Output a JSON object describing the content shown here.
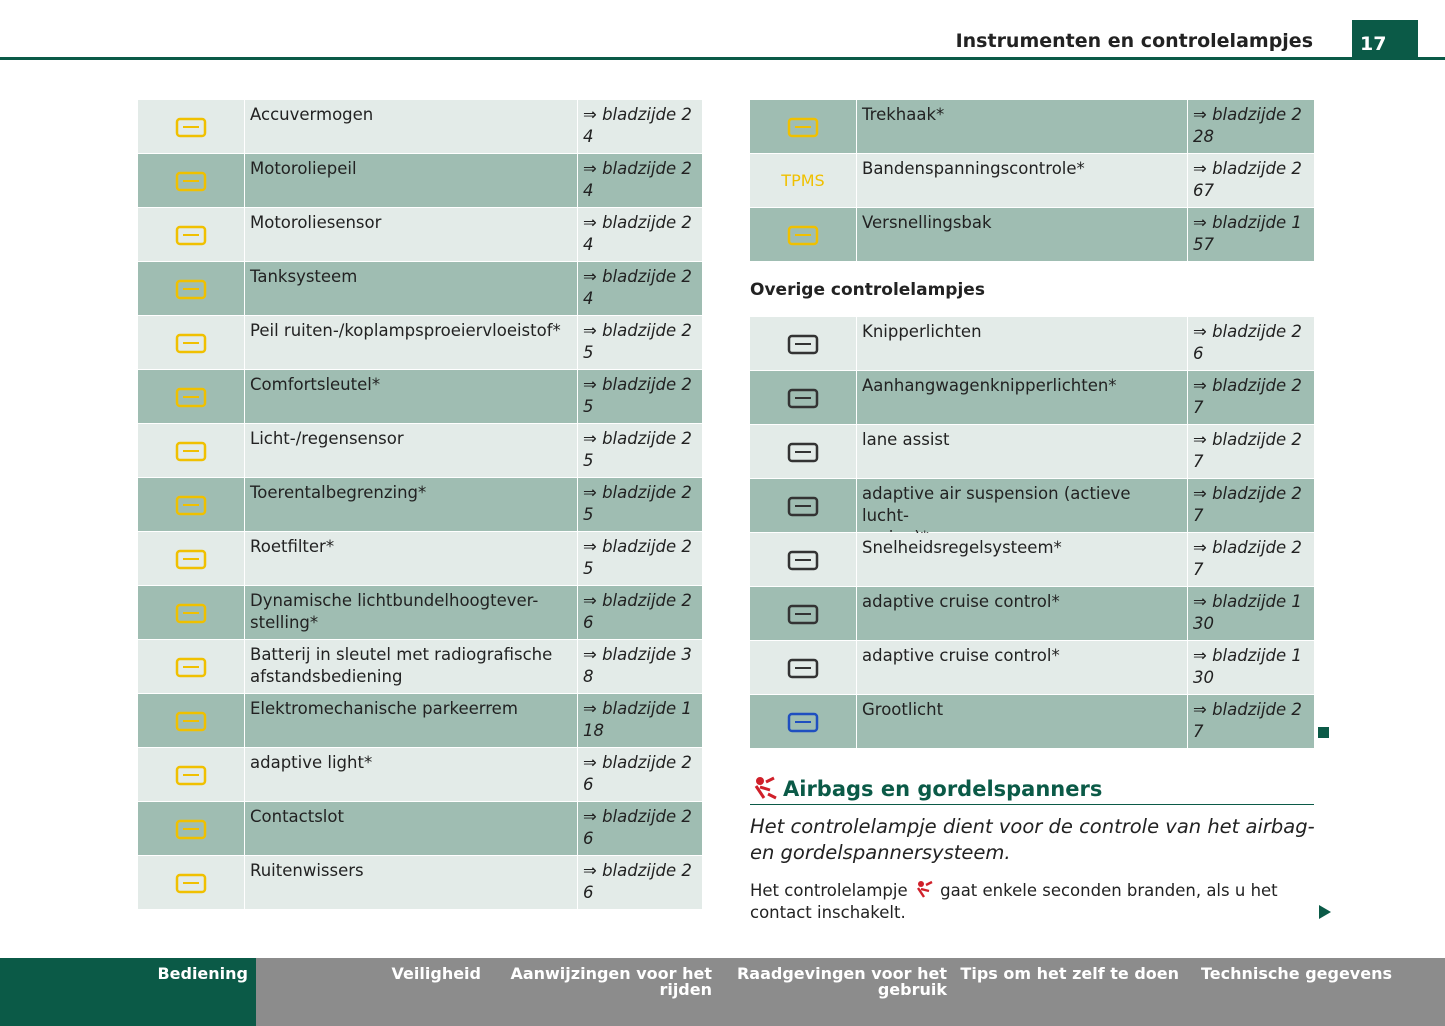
{
  "header": {
    "title": "Instrumenten en controlelampjes",
    "page": "17"
  },
  "left_table": {
    "rows": [
      [
        "Accuvermogen",
        "⇒ bladzijde 2\n4"
      ],
      [
        "Motoroliepeil",
        "⇒ bladzijde 2\n4"
      ],
      [
        "Motoroliesensor",
        "⇒ bladzijde 2\n4"
      ],
      [
        "Tanksysteem",
        "⇒ bladzijde 2\n4"
      ],
      [
        "Peil ruiten-/koplampsproeiervloeistof*",
        "⇒ bladzijde 2\n5"
      ],
      [
        "Comfortsleutel*",
        "⇒ bladzijde 2\n5"
      ],
      [
        "Licht-/regensensor",
        "⇒ bladzijde 2\n5"
      ],
      [
        "Toerentalbegrenzing*",
        "⇒ bladzijde 2\n5"
      ],
      [
        "Roetfilter*",
        "⇒ bladzijde 2\n5"
      ],
      [
        "Dynamische lichtbundelhoogtever-\nstelling*",
        "⇒ bladzijde 2\n6"
      ],
      [
        "Batterij in sleutel met radiografische\nafstandsbediening",
        "⇒ bladzijde 3\n8"
      ],
      [
        "Elektromechanische parkeerrem",
        "⇒ bladzijde 1\n18"
      ],
      [
        "adaptive light*",
        "⇒ bladzijde 2\n6"
      ],
      [
        "Contactslot",
        "⇒ bladzijde 2\n6"
      ],
      [
        "Ruitenwissers",
        "⇒ bladzijde 2\n6"
      ]
    ]
  },
  "right_table": {
    "rows": [
      [
        "",
        "Trekhaak*",
        "⇒ bladzijde 2\n28"
      ],
      [
        "TPMS",
        "Bandenspanningscontrole*",
        "⇒ bladzijde 2\n67"
      ],
      [
        "",
        "Versnellingsbak",
        "⇒ bladzijde 1\n57"
      ]
    ]
  },
  "other_heading": "Overige controlelampjes",
  "other_table": {
    "rows": [
      [
        "Knipperlichten",
        "⇒ bladzijde 2\n6"
      ],
      [
        "Aanhangwagenknipperlichten*",
        "⇒ bladzijde 2\n7"
      ],
      [
        "lane assist",
        "⇒ bladzijde 2\n7"
      ],
      [
        "adaptive air suspension (actieve lucht-\nvering)*",
        "⇒ bladzijde 2\n7"
      ],
      [
        "Snelheidsregelsysteem*",
        "⇒ bladzijde 2\n7"
      ],
      [
        "adaptive cruise control*",
        "⇒ bladzijde 1\n30"
      ],
      [
        "adaptive cruise control*",
        "⇒ bladzijde 1\n30"
      ],
      [
        "Grootlicht",
        "⇒ bladzijde 2\n7"
      ]
    ]
  },
  "section": {
    "title": "Airbags en gordelspanners",
    "intro": "Het controlelampje dient voor de controle van het airbag-\nen gordelspannersysteem.",
    "body_before": "Het controlelampje",
    "body_after": "gaat enkele seconden branden, als u het\ncontact inschakelt."
  },
  "footer": {
    "tabs": [
      "Bediening",
      "Veiligheid",
      "Aanwijzingen voor het\nrijden",
      "Raadgevingen voor het\ngebruik",
      "Tips om het zelf te doen",
      "Technische gegevens"
    ]
  }
}
